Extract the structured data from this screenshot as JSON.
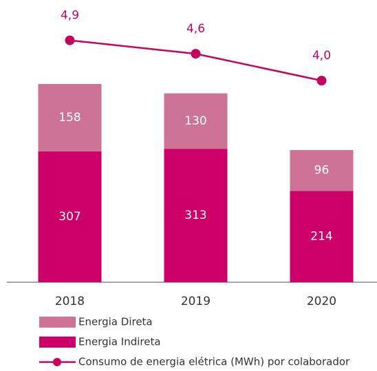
{
  "chart_data": {
    "type": "bar",
    "categories": [
      "2018",
      "2019",
      "2020"
    ],
    "series": [
      {
        "name": "Energia Direta",
        "color": "#cc7396",
        "values": [
          158,
          130,
          96
        ]
      },
      {
        "name": "Energia Indireta",
        "color": "#cc0066",
        "values": [
          307,
          313,
          214
        ]
      },
      {
        "name": "Consumo de energia elétrica (MWh) por colaborador",
        "color": "#c8005e",
        "type": "line",
        "axis": "y2",
        "values": [
          4.9,
          4.6,
          4.0
        ],
        "value_labels": [
          "4,9",
          "4,6",
          "4,0"
        ]
      }
    ],
    "ylim": [
      0,
      662
    ],
    "y2lim": [
      -0.5,
      5.8
    ],
    "stacked": true,
    "grid": false,
    "legend": "bottom"
  }
}
